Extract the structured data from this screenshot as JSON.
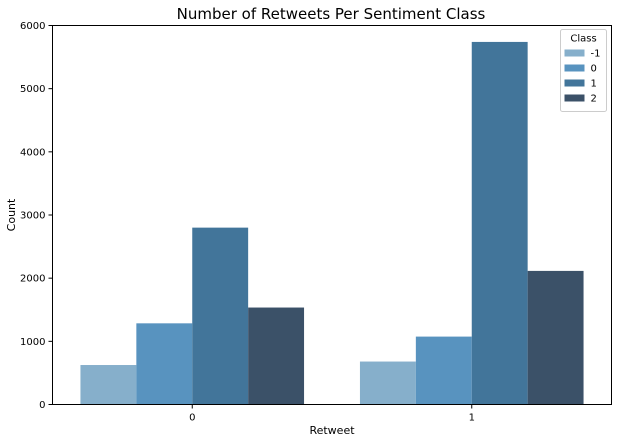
{
  "chart_data": {
    "type": "bar",
    "title": "Number of Retweets Per Sentiment Class",
    "xlabel": "Retweet",
    "ylabel": "Count",
    "categories": [
      "0",
      "1"
    ],
    "ylim": [
      0,
      6000
    ],
    "yticks": [
      0,
      1000,
      2000,
      3000,
      4000,
      5000,
      6000
    ],
    "grid": false,
    "legend": {
      "title": "Class",
      "position": "top-right"
    },
    "series": [
      {
        "name": "-1",
        "color": "#86afcb",
        "values": [
          625,
          680
        ]
      },
      {
        "name": "0",
        "color": "#5893bf",
        "values": [
          1285,
          1075
        ]
      },
      {
        "name": "1",
        "color": "#42759a",
        "values": [
          2800,
          5740
        ]
      },
      {
        "name": "2",
        "color": "#3b5168",
        "values": [
          1535,
          2115
        ]
      }
    ]
  }
}
